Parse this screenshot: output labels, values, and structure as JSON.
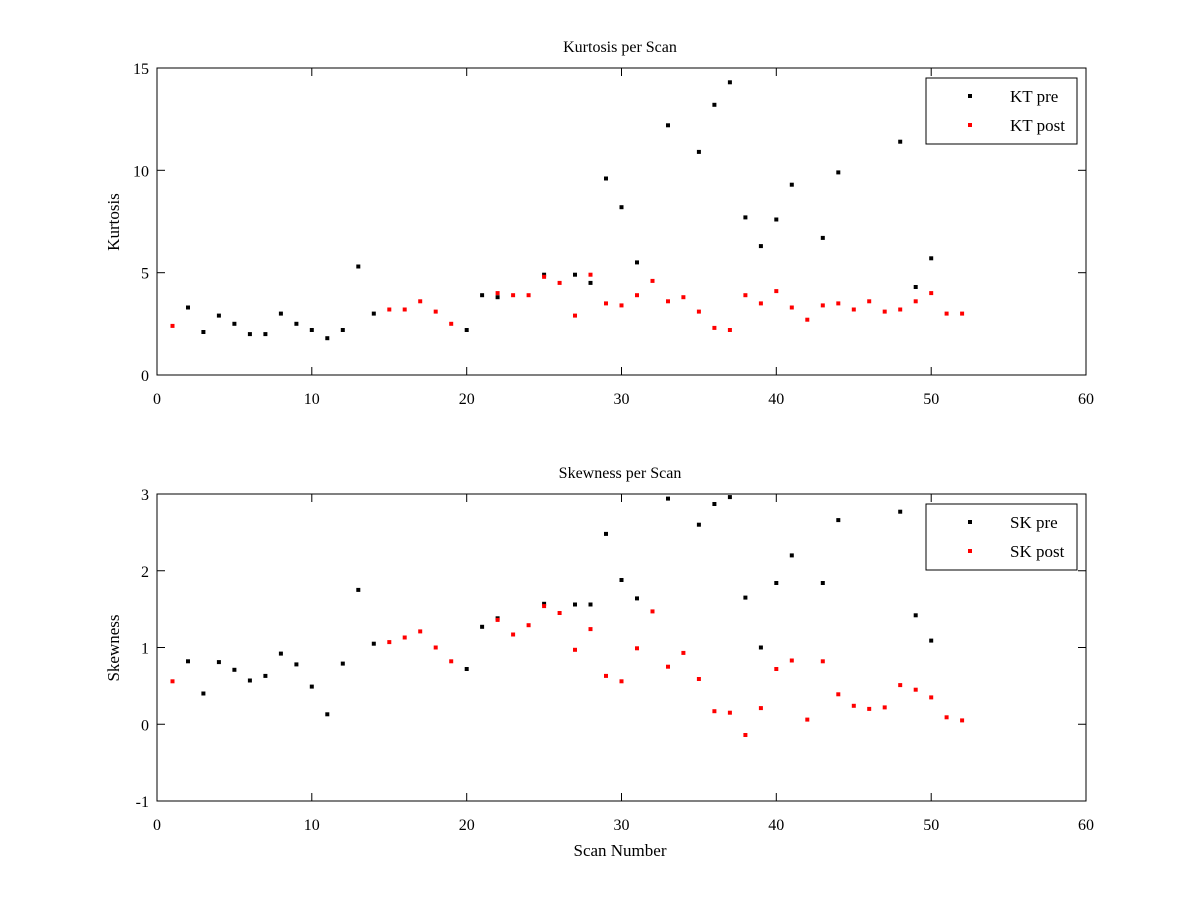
{
  "chart_data": [
    {
      "type": "scatter",
      "title": "Kurtosis per Scan",
      "xlabel": "",
      "ylabel": "Kurtosis",
      "xlim": [
        0,
        60
      ],
      "ylim": [
        0,
        15
      ],
      "xticks": [
        "0",
        "10",
        "20",
        "30",
        "40",
        "50",
        "60"
      ],
      "yticks": [
        "0",
        "5",
        "10",
        "15"
      ],
      "legend": "top-right",
      "series": [
        {
          "name": "KT pre",
          "color": "#000000",
          "points": [
            [
              2,
              3.3
            ],
            [
              3,
              2.1
            ],
            [
              4,
              2.9
            ],
            [
              5,
              2.5
            ],
            [
              6,
              2.0
            ],
            [
              7,
              2.0
            ],
            [
              8,
              3.0
            ],
            [
              9,
              2.5
            ],
            [
              10,
              2.2
            ],
            [
              11,
              1.8
            ],
            [
              12,
              2.2
            ],
            [
              13,
              5.3
            ],
            [
              14,
              3.0
            ],
            [
              20,
              2.2
            ],
            [
              21,
              3.9
            ],
            [
              22,
              3.8
            ],
            [
              25,
              4.9
            ],
            [
              27,
              4.9
            ],
            [
              28,
              4.5
            ],
            [
              29,
              9.6
            ],
            [
              30,
              8.2
            ],
            [
              31,
              5.5
            ],
            [
              33,
              12.2
            ],
            [
              35,
              10.9
            ],
            [
              36,
              13.2
            ],
            [
              37,
              14.3
            ],
            [
              38,
              7.7
            ],
            [
              39,
              6.3
            ],
            [
              40,
              7.6
            ],
            [
              41,
              9.3
            ],
            [
              43,
              6.7
            ],
            [
              44,
              9.9
            ],
            [
              48,
              11.4
            ],
            [
              49,
              4.3
            ],
            [
              50,
              5.7
            ]
          ]
        },
        {
          "name": "KT post",
          "color": "#ff0000",
          "points": [
            [
              1,
              2.4
            ],
            [
              15,
              3.2
            ],
            [
              16,
              3.2
            ],
            [
              17,
              3.6
            ],
            [
              18,
              3.1
            ],
            [
              19,
              2.5
            ],
            [
              22,
              4.0
            ],
            [
              23,
              3.9
            ],
            [
              24,
              3.9
            ],
            [
              25,
              4.8
            ],
            [
              26,
              4.5
            ],
            [
              27,
              2.9
            ],
            [
              28,
              4.9
            ],
            [
              29,
              3.5
            ],
            [
              30,
              3.4
            ],
            [
              31,
              3.9
            ],
            [
              32,
              4.6
            ],
            [
              33,
              3.6
            ],
            [
              34,
              3.8
            ],
            [
              35,
              3.1
            ],
            [
              36,
              2.3
            ],
            [
              37,
              2.2
            ],
            [
              38,
              3.9
            ],
            [
              39,
              3.5
            ],
            [
              40,
              4.1
            ],
            [
              41,
              3.3
            ],
            [
              42,
              2.7
            ],
            [
              43,
              3.4
            ],
            [
              44,
              3.5
            ],
            [
              45,
              3.2
            ],
            [
              46,
              3.6
            ],
            [
              47,
              3.1
            ],
            [
              48,
              3.2
            ],
            [
              49,
              3.6
            ],
            [
              50,
              4.0
            ],
            [
              51,
              3.0
            ],
            [
              52,
              3.0
            ]
          ]
        }
      ]
    },
    {
      "type": "scatter",
      "title": "Skewness per Scan",
      "xlabel": "Scan Number",
      "ylabel": "Skewness",
      "xlim": [
        0,
        60
      ],
      "ylim": [
        -1,
        3
      ],
      "xticks": [
        "0",
        "10",
        "20",
        "30",
        "40",
        "50",
        "60"
      ],
      "yticks": [
        "-1",
        "0",
        "1",
        "2",
        "3"
      ],
      "legend": "top-right",
      "series": [
        {
          "name": "SK pre",
          "color": "#000000",
          "points": [
            [
              2,
              0.82
            ],
            [
              3,
              0.4
            ],
            [
              4,
              0.81
            ],
            [
              5,
              0.71
            ],
            [
              6,
              0.57
            ],
            [
              7,
              0.63
            ],
            [
              8,
              0.92
            ],
            [
              9,
              0.78
            ],
            [
              10,
              0.49
            ],
            [
              11,
              0.13
            ],
            [
              12,
              0.79
            ],
            [
              13,
              1.75
            ],
            [
              14,
              1.05
            ],
            [
              20,
              0.72
            ],
            [
              21,
              1.27
            ],
            [
              22,
              1.38
            ],
            [
              25,
              1.57
            ],
            [
              27,
              1.56
            ],
            [
              28,
              1.56
            ],
            [
              29,
              2.48
            ],
            [
              30,
              1.88
            ],
            [
              31,
              1.64
            ],
            [
              33,
              2.94
            ],
            [
              35,
              2.6
            ],
            [
              36,
              2.87
            ],
            [
              37,
              2.96
            ],
            [
              38,
              1.65
            ],
            [
              39,
              1.0
            ],
            [
              40,
              1.84
            ],
            [
              41,
              2.2
            ],
            [
              43,
              1.84
            ],
            [
              44,
              2.66
            ],
            [
              48,
              2.77
            ],
            [
              49,
              1.42
            ],
            [
              50,
              1.09
            ]
          ]
        },
        {
          "name": "SK post",
          "color": "#ff0000",
          "points": [
            [
              1,
              0.56
            ],
            [
              15,
              1.07
            ],
            [
              16,
              1.13
            ],
            [
              17,
              1.21
            ],
            [
              18,
              1.0
            ],
            [
              19,
              0.82
            ],
            [
              22,
              1.36
            ],
            [
              23,
              1.17
            ],
            [
              24,
              1.29
            ],
            [
              25,
              1.54
            ],
            [
              26,
              1.45
            ],
            [
              27,
              0.97
            ],
            [
              28,
              1.24
            ],
            [
              29,
              0.63
            ],
            [
              30,
              0.56
            ],
            [
              31,
              0.99
            ],
            [
              32,
              1.47
            ],
            [
              33,
              0.75
            ],
            [
              34,
              0.93
            ],
            [
              35,
              0.59
            ],
            [
              36,
              0.17
            ],
            [
              37,
              0.15
            ],
            [
              38,
              -0.14
            ],
            [
              39,
              0.21
            ],
            [
              40,
              0.72
            ],
            [
              41,
              0.83
            ],
            [
              42,
              0.06
            ],
            [
              43,
              0.82
            ],
            [
              44,
              0.39
            ],
            [
              45,
              0.24
            ],
            [
              46,
              0.2
            ],
            [
              47,
              0.22
            ],
            [
              48,
              0.51
            ],
            [
              49,
              0.45
            ],
            [
              50,
              0.35
            ],
            [
              51,
              0.09
            ],
            [
              52,
              0.05
            ]
          ]
        }
      ]
    }
  ]
}
